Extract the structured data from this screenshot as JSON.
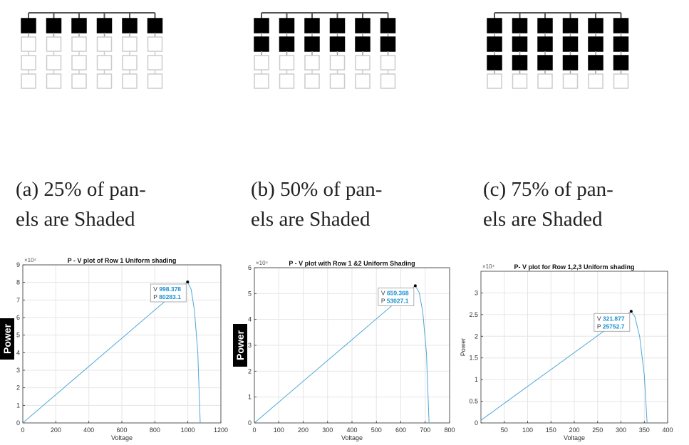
{
  "panels": [
    {
      "caption_line1": "(a)  25% of pan-",
      "caption_line2": "els are Shaded",
      "shaded_rows": 1,
      "total_rows": 4,
      "columns": 6
    },
    {
      "caption_line1": "(b)  50% of pan-",
      "caption_line2": "els are Shaded",
      "shaded_rows": 2,
      "total_rows": 4,
      "columns": 6
    },
    {
      "caption_line1": "(c)  75% of pan-",
      "caption_line2": "els are Shaded",
      "shaded_rows": 3,
      "total_rows": 4,
      "columns": 6
    }
  ],
  "colors": {
    "line": "#4fa8d8",
    "datatip_text": "#1a8fd1",
    "shaded": "#000000",
    "unshaded": "#cccccc",
    "axes": "#333333",
    "grid": "#e6e6e6"
  },
  "chart_data": [
    {
      "type": "line",
      "title": "P - V plot of Row 1 Uniform shading",
      "xlabel": "Voltage",
      "ylabel": "Power",
      "ylabel_style": "black-tab",
      "exponent_label": "×10⁴",
      "xlim": [
        0,
        1200
      ],
      "ylim": [
        0,
        9
      ],
      "xticks": [
        0,
        200,
        400,
        600,
        800,
        1000,
        1200
      ],
      "yticks": [
        0,
        1,
        2,
        3,
        4,
        5,
        6,
        7,
        8,
        9
      ],
      "grid": true,
      "series": [
        {
          "x": [
            0,
            998.378,
            1020,
            1040,
            1060,
            1075
          ],
          "y": [
            0,
            8.02831,
            7.6,
            6.4,
            4.0,
            0
          ]
        }
      ],
      "datatip": {
        "x": 998.378,
        "y": 8.02831,
        "v_label": "V",
        "v_value": "998.378",
        "p_label": "P",
        "p_value": "80283.1"
      }
    },
    {
      "type": "line",
      "title": "P - V plot with Row 1 &2 Uniform Shading",
      "xlabel": "Voltage",
      "ylabel": "Power",
      "ylabel_style": "black-tab",
      "exponent_label": "×10⁴",
      "xlim": [
        0,
        800
      ],
      "ylim": [
        0,
        6
      ],
      "xticks": [
        0,
        100,
        200,
        300,
        400,
        500,
        600,
        700,
        800
      ],
      "yticks": [
        0,
        1,
        2,
        3,
        4,
        5,
        6
      ],
      "grid": true,
      "series": [
        {
          "x": [
            0,
            659.368,
            675,
            690,
            705,
            716
          ],
          "y": [
            0,
            5.30271,
            5.05,
            4.3,
            2.7,
            0
          ]
        }
      ],
      "datatip": {
        "x": 659.368,
        "y": 5.30271,
        "v_label": "V",
        "v_value": "659.368",
        "p_label": "P",
        "p_value": "53027.1"
      }
    },
    {
      "type": "line",
      "title": "P- V plot for Row 1,2,3 Uniform shading",
      "xlabel": "Voltage",
      "ylabel": "Power",
      "ylabel_style": "plain",
      "exponent_label": "×10⁴",
      "xlim": [
        0,
        400
      ],
      "ylim": [
        0,
        3.5
      ],
      "xticks": [
        50,
        100,
        150,
        200,
        250,
        300,
        350,
        400
      ],
      "yticks": [
        0,
        0.5,
        1,
        1.5,
        2,
        2.5,
        3
      ],
      "grid": true,
      "series": [
        {
          "x": [
            0,
            321.877,
            330,
            340,
            350,
            356
          ],
          "y": [
            0.06,
            2.57527,
            2.45,
            2.0,
            1.1,
            0
          ]
        }
      ],
      "datatip": {
        "x": 321.877,
        "y": 2.57527,
        "v_label": "V",
        "v_value": "321.877",
        "p_label": "P",
        "p_value": "25752.7"
      }
    }
  ]
}
